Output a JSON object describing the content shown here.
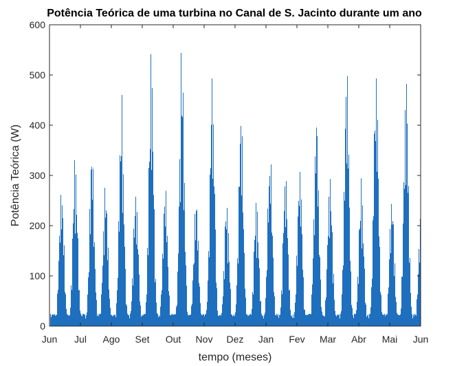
{
  "chart_data": {
    "type": "bar",
    "title": "Potência Teórica de uma turbina no Canal de S. Jacinto durante um ano",
    "xlabel": "tempo (meses)",
    "ylabel": "Potência Teórica (W)",
    "ylim": [
      0,
      600
    ],
    "xlim": [
      0,
      12
    ],
    "yticks": [
      0,
      100,
      200,
      300,
      400,
      500,
      600
    ],
    "xtick_labels": [
      "Jun",
      "Jul",
      "Ago",
      "Set",
      "Out",
      "Nov",
      "Dez",
      "Jan",
      "Fev",
      "Mar",
      "Abr",
      "Mai",
      "Jun"
    ],
    "grid": false,
    "color": "#1f6fbf",
    "baseline_w": 25,
    "spring_neap_peaks": [
      {
        "t": 0.38,
        "peak": 305
      },
      {
        "t": 0.82,
        "peak": 365
      },
      {
        "t": 1.36,
        "peak": 360
      },
      {
        "t": 1.8,
        "peak": 308
      },
      {
        "t": 2.32,
        "peak": 478
      },
      {
        "t": 2.78,
        "peak": 305
      },
      {
        "t": 3.28,
        "peak": 575
      },
      {
        "t": 3.73,
        "peak": 305
      },
      {
        "t": 4.27,
        "peak": 595
      },
      {
        "t": 4.73,
        "peak": 285
      },
      {
        "t": 5.25,
        "peak": 535
      },
      {
        "t": 5.72,
        "peak": 278
      },
      {
        "t": 6.18,
        "peak": 460
      },
      {
        "t": 6.68,
        "peak": 278
      },
      {
        "t": 7.12,
        "peak": 385
      },
      {
        "t": 7.62,
        "peak": 348
      },
      {
        "t": 8.08,
        "peak": 340
      },
      {
        "t": 8.62,
        "peak": 462
      },
      {
        "t": 9.06,
        "peak": 340
      },
      {
        "t": 9.6,
        "peak": 555
      },
      {
        "t": 10.07,
        "peak": 318
      },
      {
        "t": 10.55,
        "peak": 570
      },
      {
        "t": 11.06,
        "peak": 278
      },
      {
        "t": 11.52,
        "peak": 525
      },
      {
        "t": 12.0,
        "peak": 240
      }
    ]
  }
}
